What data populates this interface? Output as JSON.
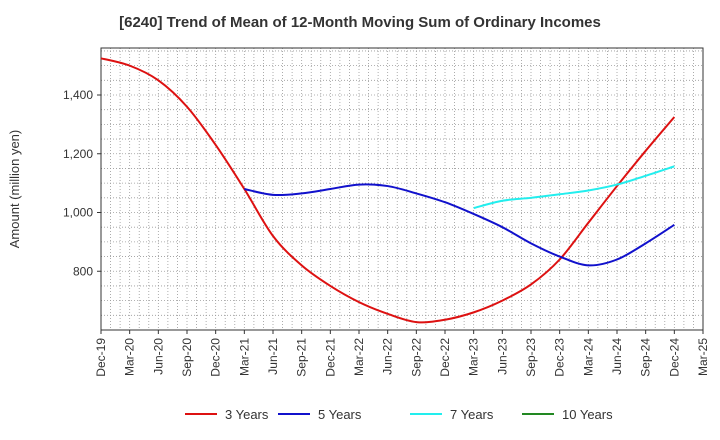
{
  "chart_data": {
    "type": "line",
    "title": "[6240]  Trend of Mean of 12-Month Moving Sum of Ordinary Incomes",
    "xlabel": "",
    "ylabel": "Amount (million yen)",
    "ylim": [
      600,
      1560
    ],
    "yticks": [
      800,
      1000,
      1200,
      1400
    ],
    "ytick_labels": [
      "800",
      "1,000",
      "1,200",
      "1,400"
    ],
    "categories": [
      "Dec-19",
      "Mar-20",
      "Jun-20",
      "Sep-20",
      "Dec-20",
      "Mar-21",
      "Jun-21",
      "Sep-21",
      "Dec-21",
      "Mar-22",
      "Jun-22",
      "Sep-22",
      "Dec-22",
      "Mar-23",
      "Jun-23",
      "Sep-23",
      "Dec-23",
      "Mar-24",
      "Jun-24",
      "Sep-24",
      "Dec-24",
      "Mar-25"
    ],
    "grid": true,
    "legend_position": "bottom",
    "series": [
      {
        "name": "3 Years",
        "color": "#dd1111",
        "values": [
          1525,
          1500,
          1450,
          1360,
          1230,
          1080,
          920,
          820,
          750,
          695,
          655,
          627,
          635,
          660,
          700,
          755,
          840,
          965,
          1090,
          1210,
          1325,
          null
        ]
      },
      {
        "name": "5 Years",
        "color": "#1111cc",
        "values": [
          null,
          null,
          null,
          null,
          null,
          1080,
          1060,
          1065,
          1080,
          1095,
          1090,
          1065,
          1035,
          995,
          950,
          895,
          850,
          820,
          840,
          895,
          958,
          null
        ]
      },
      {
        "name": "7 Years",
        "color": "#22eeee",
        "values": [
          null,
          null,
          null,
          null,
          null,
          null,
          null,
          null,
          null,
          null,
          null,
          null,
          null,
          1015,
          1040,
          1050,
          1062,
          1075,
          1095,
          1125,
          1157,
          null
        ]
      },
      {
        "name": "10 Years",
        "color": "#228822",
        "values": [
          null,
          null,
          null,
          null,
          null,
          null,
          null,
          null,
          null,
          null,
          null,
          null,
          null,
          null,
          null,
          null,
          null,
          null,
          null,
          null,
          null,
          null
        ]
      }
    ]
  }
}
